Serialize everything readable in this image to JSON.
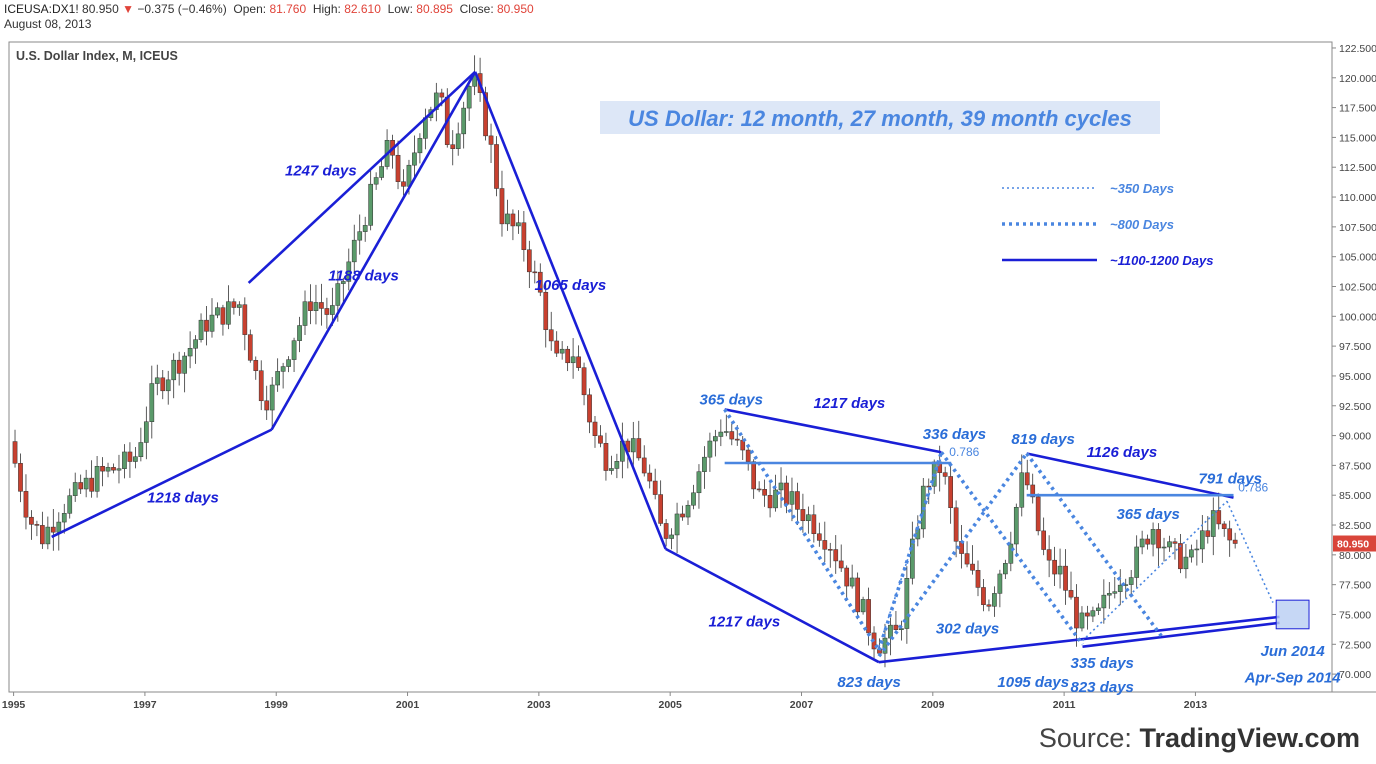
{
  "header": {
    "symbol": "ICEUSA:DX1!",
    "last": "80.950",
    "change_arrow": "▼",
    "change": "−0.375 (−0.46%)",
    "open_label": "Open:",
    "open": "81.760",
    "high_label": "High:",
    "high": "82.610",
    "low_label": "Low:",
    "low": "80.895",
    "close_label": "Close:",
    "close": "80.950",
    "date": "August 08, 2013"
  },
  "source": {
    "prefix": "Source: ",
    "brand": "TradingView.com"
  },
  "chart_data": {
    "type": "candlestick",
    "title": "US Dollar: 12 month, 27 month, 39 month cycles",
    "instrument_label": "U.S. Dollar Index, M, ICEUS",
    "y_range": [
      68.5,
      123.0
    ],
    "x_range": [
      1994.95,
      2015.1
    ],
    "y_ticks": [
      "122.500",
      "120.000",
      "117.500",
      "115.000",
      "112.500",
      "110.000",
      "107.500",
      "105.000",
      "102.500",
      "100.000",
      "97.500",
      "95.000",
      "92.500",
      "90.000",
      "87.500",
      "85.000",
      "82.500",
      "80.000",
      "77.500",
      "75.000",
      "72.500",
      "70.000"
    ],
    "x_ticks": [
      "1995",
      "1997",
      "1999",
      "2001",
      "2003",
      "2005",
      "2007",
      "2009",
      "2011",
      "2013"
    ],
    "last_price_label": "80.950",
    "colors": {
      "up": "#5a9a6a",
      "down": "#c8402f",
      "cycle": "#1a1fd6",
      "cycle_light": "#4a86e0",
      "label_dark": "#1a1fd6",
      "label_light": "#2a6dd8"
    },
    "anchors": [
      {
        "t": 1995.0,
        "v": 89.5
      },
      {
        "t": 1995.3,
        "v": 83.0
      },
      {
        "t": 1995.5,
        "v": 81.5
      },
      {
        "t": 1995.8,
        "v": 84.0
      },
      {
        "t": 1996.3,
        "v": 86.5
      },
      {
        "t": 1996.9,
        "v": 88.0
      },
      {
        "t": 1997.2,
        "v": 94.0
      },
      {
        "t": 1997.7,
        "v": 97.0
      },
      {
        "t": 1998.0,
        "v": 99.5
      },
      {
        "t": 1998.5,
        "v": 101.0
      },
      {
        "t": 1998.8,
        "v": 94.0
      },
      {
        "t": 1998.95,
        "v": 93.0
      },
      {
        "t": 1999.3,
        "v": 98.0
      },
      {
        "t": 1999.6,
        "v": 101.5
      },
      {
        "t": 1999.9,
        "v": 100.0
      },
      {
        "t": 2000.2,
        "v": 105.0
      },
      {
        "t": 2000.5,
        "v": 110.0
      },
      {
        "t": 2000.8,
        "v": 114.5
      },
      {
        "t": 2001.0,
        "v": 110.0
      },
      {
        "t": 2001.3,
        "v": 117.0
      },
      {
        "t": 2001.55,
        "v": 118.5
      },
      {
        "t": 2001.7,
        "v": 114.0
      },
      {
        "t": 2001.9,
        "v": 117.5
      },
      {
        "t": 2002.05,
        "v": 120.2
      },
      {
        "t": 2002.3,
        "v": 115.0
      },
      {
        "t": 2002.5,
        "v": 108.5
      },
      {
        "t": 2002.8,
        "v": 106.5
      },
      {
        "t": 2003.1,
        "v": 101.5
      },
      {
        "t": 2003.3,
        "v": 96.0
      },
      {
        "t": 2003.6,
        "v": 97.0
      },
      {
        "t": 2003.9,
        "v": 90.0
      },
      {
        "t": 2004.1,
        "v": 88.0
      },
      {
        "t": 2004.4,
        "v": 89.5
      },
      {
        "t": 2004.7,
        "v": 87.0
      },
      {
        "t": 2004.95,
        "v": 81.5
      },
      {
        "t": 2005.3,
        "v": 84.5
      },
      {
        "t": 2005.6,
        "v": 88.5
      },
      {
        "t": 2005.85,
        "v": 91.0
      },
      {
        "t": 2006.2,
        "v": 88.0
      },
      {
        "t": 2006.4,
        "v": 85.0
      },
      {
        "t": 2006.8,
        "v": 85.0
      },
      {
        "t": 2007.2,
        "v": 83.0
      },
      {
        "t": 2007.5,
        "v": 81.0
      },
      {
        "t": 2007.9,
        "v": 76.5
      },
      {
        "t": 2008.2,
        "v": 72.5
      },
      {
        "t": 2008.55,
        "v": 73.5
      },
      {
        "t": 2008.8,
        "v": 82.0
      },
      {
        "t": 2008.95,
        "v": 86.0
      },
      {
        "t": 2009.2,
        "v": 87.5
      },
      {
        "t": 2009.45,
        "v": 80.0
      },
      {
        "t": 2009.9,
        "v": 76.0
      },
      {
        "t": 2010.2,
        "v": 80.5
      },
      {
        "t": 2010.45,
        "v": 87.0
      },
      {
        "t": 2010.8,
        "v": 79.0
      },
      {
        "t": 2011.0,
        "v": 78.5
      },
      {
        "t": 2011.3,
        "v": 74.0
      },
      {
        "t": 2011.55,
        "v": 74.5
      },
      {
        "t": 2011.85,
        "v": 78.0
      },
      {
        "t": 2012.1,
        "v": 79.0
      },
      {
        "t": 2012.4,
        "v": 82.5
      },
      {
        "t": 2012.7,
        "v": 80.0
      },
      {
        "t": 2013.0,
        "v": 79.5
      },
      {
        "t": 2013.3,
        "v": 83.0
      },
      {
        "t": 2013.6,
        "v": 80.95
      }
    ],
    "cycle_lines": [
      {
        "style": "solid",
        "points": [
          [
            1995.6,
            81.5
          ],
          [
            1998.95,
            90.5
          ]
        ]
      },
      {
        "style": "solid",
        "points": [
          [
            1998.95,
            90.5
          ],
          [
            2002.05,
            120.5
          ]
        ]
      },
      {
        "style": "solid",
        "points": [
          [
            1998.6,
            102.8
          ],
          [
            2002.05,
            120.5
          ]
        ]
      },
      {
        "style": "solid",
        "points": [
          [
            2002.05,
            120.5
          ],
          [
            2004.95,
            80.5
          ]
        ]
      },
      {
        "style": "solid",
        "points": [
          [
            2004.95,
            80.5
          ],
          [
            2008.2,
            71.0
          ]
        ]
      },
      {
        "style": "solid",
        "points": [
          [
            2008.2,
            71.0
          ],
          [
            2014.3,
            74.8
          ]
        ]
      },
      {
        "style": "solid",
        "points": [
          [
            2011.3,
            72.3
          ],
          [
            2014.3,
            74.3
          ]
        ]
      },
      {
        "style": "solid",
        "points": [
          [
            2005.85,
            92.2
          ],
          [
            2009.15,
            88.6
          ]
        ]
      },
      {
        "style": "solid",
        "points": [
          [
            2010.45,
            88.5
          ],
          [
            2013.6,
            84.8
          ]
        ]
      },
      {
        "style": "horizontal",
        "points": [
          [
            2005.85,
            87.7
          ],
          [
            2009.3,
            87.7
          ]
        ]
      },
      {
        "style": "horizontal",
        "points": [
          [
            2010.45,
            85.0
          ],
          [
            2013.6,
            85.0
          ]
        ]
      },
      {
        "style": "dotted",
        "points": [
          [
            2005.85,
            92.2
          ],
          [
            2008.2,
            72.0
          ]
        ]
      },
      {
        "style": "dotted",
        "points": [
          [
            2008.2,
            72.0
          ],
          [
            2009.15,
            88.6
          ]
        ]
      },
      {
        "style": "dotted",
        "points": [
          [
            2009.15,
            88.6
          ],
          [
            2011.3,
            72.5
          ]
        ]
      },
      {
        "style": "dotted",
        "points": [
          [
            2008.2,
            71.5
          ],
          [
            2010.45,
            88.5
          ]
        ]
      },
      {
        "style": "dotted",
        "points": [
          [
            2010.45,
            88.5
          ],
          [
            2012.5,
            73.2
          ]
        ]
      },
      {
        "style": "fine",
        "points": [
          [
            2011.3,
            72.8
          ],
          [
            2013.5,
            84.5
          ]
        ]
      },
      {
        "style": "fine",
        "points": [
          [
            2013.5,
            84.5
          ],
          [
            2014.2,
            76.0
          ]
        ]
      },
      {
        "style": "fine",
        "points": [
          [
            2008.2,
            72.3
          ],
          [
            2009.15,
            88.2
          ]
        ]
      }
    ],
    "annotations": [
      {
        "text": "1247 days",
        "t": 1999.7,
        "v": 111.8,
        "dark": true
      },
      {
        "text": "1188 days",
        "t": 2000.35,
        "v": 103.0,
        "dark": true
      },
      {
        "text": "1065 days",
        "t": 2003.5,
        "v": 102.2,
        "dark": true
      },
      {
        "text": "1218 days",
        "t": 1997.6,
        "v": 84.4,
        "dark": true
      },
      {
        "text": "365 days",
        "t": 2005.95,
        "v": 92.6,
        "dark": false
      },
      {
        "text": "1217 days",
        "t": 2007.75,
        "v": 92.3,
        "dark": true
      },
      {
        "text": "336 days",
        "t": 2009.35,
        "v": 89.7,
        "dark": false
      },
      {
        "text": "0.786",
        "t": 2009.5,
        "v": 88.3,
        "dark": false,
        "small": true
      },
      {
        "text": "819 days",
        "t": 2010.7,
        "v": 89.3,
        "dark": false
      },
      {
        "text": "1126 days",
        "t": 2011.9,
        "v": 88.2,
        "dark": true
      },
      {
        "text": "791 days",
        "t": 2013.55,
        "v": 86.0,
        "dark": false
      },
      {
        "text": "0.786",
        "t": 2013.9,
        "v": 85.3,
        "dark": false,
        "small": true
      },
      {
        "text": "365 days",
        "t": 2012.3,
        "v": 83.0,
        "dark": false
      },
      {
        "text": "1217 days",
        "t": 2006.15,
        "v": 74.0,
        "dark": true
      },
      {
        "text": "302 days",
        "t": 2009.55,
        "v": 73.4,
        "dark": false
      },
      {
        "text": "823 days",
        "t": 2008.05,
        "v": 68.9,
        "dark": false
      },
      {
        "text": "1095 days",
        "t": 2010.55,
        "v": 68.9,
        "dark": false
      },
      {
        "text": "335 days",
        "t": 2011.6,
        "v": 70.5,
        "dark": false
      },
      {
        "text": "823 days",
        "t": 2011.6,
        "v": 68.5,
        "dark": false
      },
      {
        "text": "Jun 2014",
        "t": 2014.5,
        "v": 71.5,
        "dark": false
      },
      {
        "text": "Apr-Sep 2014",
        "t": 2014.5,
        "v": 69.3,
        "dark": false
      }
    ],
    "target_box": {
      "t0": 2014.25,
      "t1": 2014.75,
      "v0": 73.8,
      "v1": 76.2
    },
    "legend": [
      {
        "label": "~350 Days",
        "style": "fine"
      },
      {
        "label": "~800 Days",
        "style": "dotted"
      },
      {
        "label": "~1100-1200 Days",
        "style": "solid"
      }
    ]
  }
}
